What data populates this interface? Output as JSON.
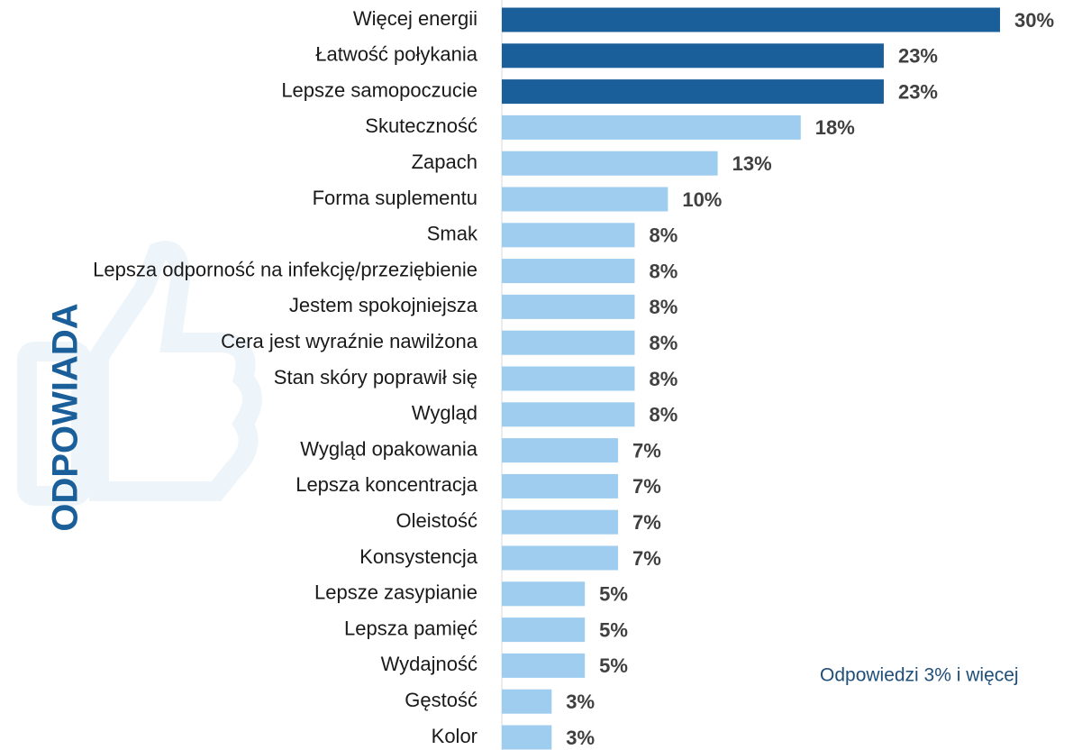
{
  "chart_data": {
    "type": "bar",
    "orientation": "horizontal",
    "side_label": "ODPOWIADA",
    "annotation": "Odpowiedzi 3% i więcej",
    "categories": [
      "Więcej energii",
      "Łatwość połykania",
      "Lepsze samopoczucie",
      "Skuteczność",
      "Zapach",
      "Forma suplementu",
      "Smak",
      "Lepsza odporność na infekcję/przeziębienie",
      "Jestem spokojniejsza",
      "Cera jest wyraźnie nawilżona",
      "Stan skóry poprawił się",
      "Wygląd",
      "Wygląd opakowania",
      "Lepsza koncentracja",
      "Oleistość",
      "Konsystencja",
      "Lepsze zasypianie",
      "Lepsza pamięć",
      "Wydajność",
      "Gęstość",
      "Kolor"
    ],
    "values": [
      30,
      23,
      23,
      18,
      13,
      10,
      8,
      8,
      8,
      8,
      8,
      8,
      7,
      7,
      7,
      7,
      5,
      5,
      5,
      3,
      3
    ],
    "value_labels": [
      "30%",
      "23%",
      "23%",
      "18%",
      "13%",
      "10%",
      "8%",
      "8%",
      "8%",
      "8%",
      "8%",
      "8%",
      "7%",
      "7%",
      "7%",
      "7%",
      "5%",
      "5%",
      "5%",
      "3%",
      "3%"
    ],
    "colors": [
      "#1a5f99",
      "#1a5f99",
      "#1a5f99",
      "#9ecdf0",
      "#9ecdf0",
      "#9ecdf0",
      "#9ecdf0",
      "#9ecdf0",
      "#9ecdf0",
      "#9ecdf0",
      "#9ecdf0",
      "#9ecdf0",
      "#9ecdf0",
      "#9ecdf0",
      "#9ecdf0",
      "#9ecdf0",
      "#9ecdf0",
      "#9ecdf0",
      "#9ecdf0",
      "#9ecdf0",
      "#9ecdf0"
    ]
  }
}
